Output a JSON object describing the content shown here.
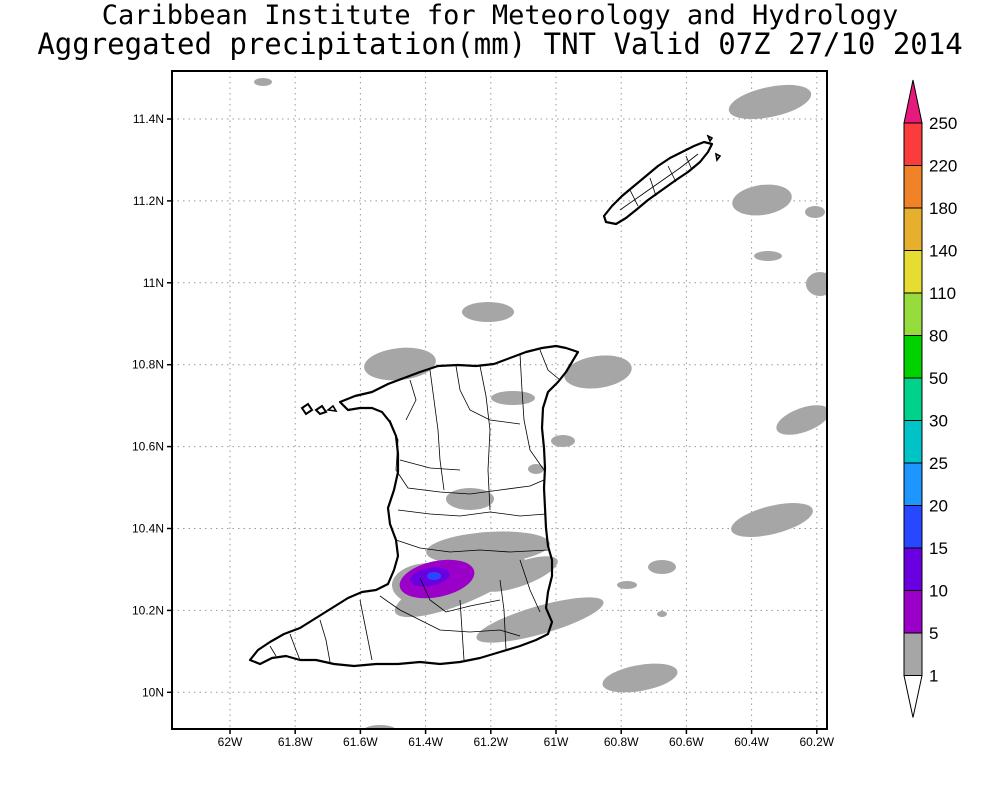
{
  "title_line1": "Caribbean Institute for Meteorology and Hydrology",
  "title_line2": "Aggregated precipitation(mm) TNT Valid 07Z 27/10 2014",
  "map": {
    "lon_ticks": [
      "62W",
      "61.8W",
      "61.6W",
      "61.4W",
      "61.2W",
      "61W",
      "60.8W",
      "60.6W",
      "60.4W",
      "60.2W"
    ],
    "lat_ticks": [
      "11.4N",
      "11.2N",
      "11N",
      "10.8N",
      "10.6N",
      "10.4N",
      "10.2N",
      "10N"
    ],
    "gridlines": "dotted",
    "colors": {
      "land_border": "#000000",
      "grid": "#9a9a9a",
      "precip_1_5": "#a6a6a6",
      "precip_5_10": "#9b00c8",
      "precip_10_15": "#6a00e0",
      "precip_15_20": "#2848ff"
    }
  },
  "colorbar": {
    "unit": "mm",
    "labels": [
      "1",
      "5",
      "10",
      "15",
      "20",
      "25",
      "30",
      "50",
      "80",
      "110",
      "140",
      "180",
      "220",
      "250"
    ],
    "colors": [
      "#a6a6a6",
      "#9b00c8",
      "#6a00e0",
      "#2848ff",
      "#1e96ff",
      "#00c3c8",
      "#00d28c",
      "#00d200",
      "#96dc3c",
      "#e6dc32",
      "#e6af2d",
      "#f08228",
      "#fa3c3c",
      "#e6197d"
    ],
    "bottom_color": "#ffffff"
  }
}
